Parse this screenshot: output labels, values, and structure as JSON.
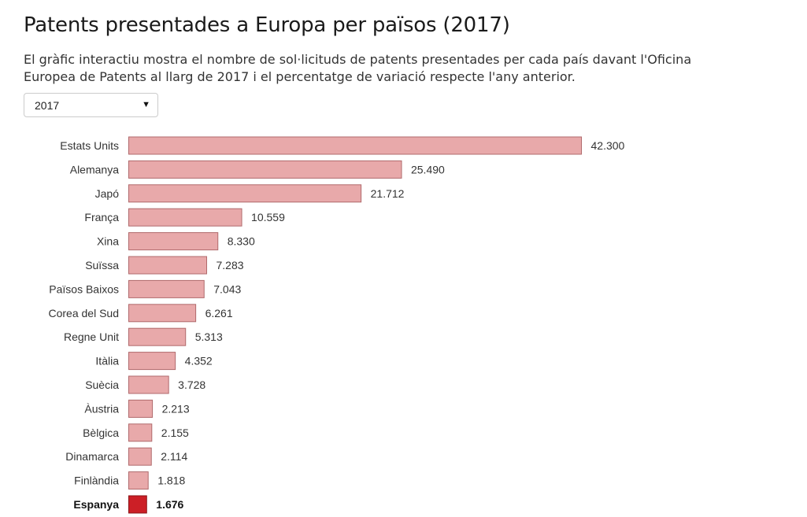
{
  "header": {
    "title": "Patents presentades a Europa per països (2017)",
    "subtitle": "El gràfic interactiu mostra el nombre de sol·licituds de patents presentades per cada país davant l'Oficina Europea de Patents al llarg de 2017 i el percentatge de variació respecte l'any anterior."
  },
  "year_selector": {
    "selected": "2017",
    "caret_icon": "triangle-down-icon"
  },
  "colors": {
    "bar": "#e8a9aa",
    "bar_stroke": "#b06a6c",
    "highlight_bar": "#cc1f26",
    "highlight_stroke": "#8a1015"
  },
  "chart_data": {
    "type": "bar",
    "orientation": "horizontal",
    "categories": [
      "Estats Units",
      "Alemanya",
      "Japó",
      "França",
      "Xina",
      "Suïssa",
      "Països Baixos",
      "Corea del Sud",
      "Regne Unit",
      "Itàlia",
      "Suècia",
      "Àustria",
      "Bèlgica",
      "Dinamarca",
      "Finlàndia",
      "Espanya"
    ],
    "values": [
      42300,
      25490,
      21712,
      10559,
      8330,
      7283,
      7043,
      6261,
      5313,
      4352,
      3728,
      2213,
      2155,
      2114,
      1818,
      1676
    ],
    "value_labels": [
      "42.300",
      "25.490",
      "21.712",
      "10.559",
      "8.330",
      "7.283",
      "7.043",
      "6.261",
      "5.313",
      "4.352",
      "3.728",
      "2.213",
      "2.155",
      "2.114",
      "1.818",
      "1.676"
    ],
    "highlight": "Espanya",
    "xlim": [
      0,
      42300
    ],
    "grid": false,
    "legend": "none"
  }
}
